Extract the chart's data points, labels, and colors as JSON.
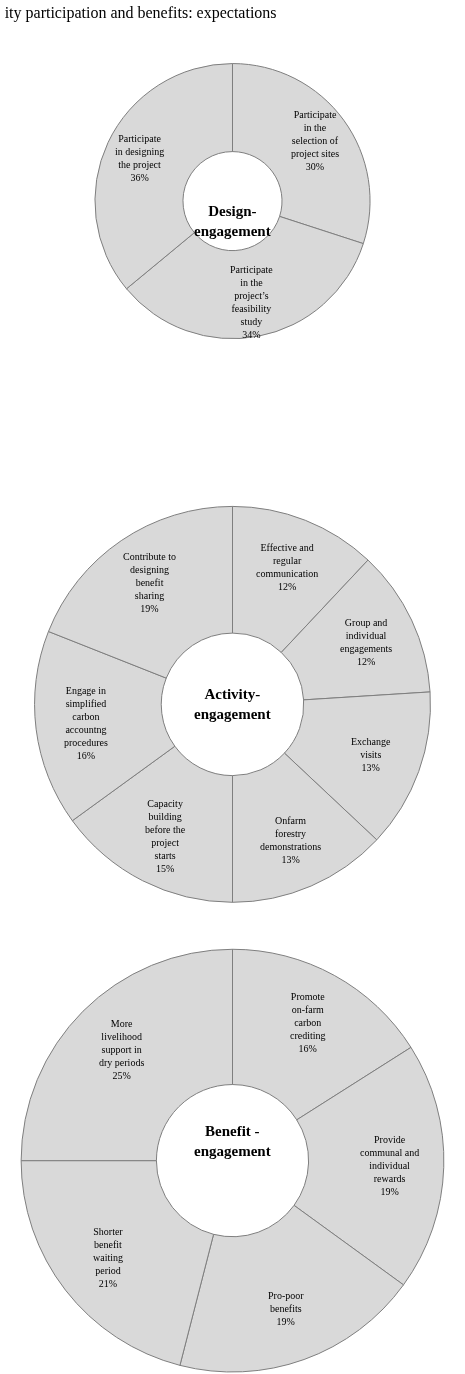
{
  "chart_data": [
    {
      "type": "donut",
      "title": "ity participation and benefits: expectations",
      "annotations": [
        "Design-\nengagement"
      ],
      "categories": [
        "Participate in the selection of project sites",
        "Participate in the project’s feasibility study",
        "Participate in designing the project"
      ],
      "values": [
        30,
        34,
        36
      ],
      "value_labels": [
        "30%",
        "34%",
        "36%"
      ],
      "colors": [
        "#d9d9d9",
        "#d9d9d9",
        "#d9d9d9"
      ]
    },
    {
      "type": "donut",
      "annotations": [
        "Activity-\nengagement"
      ],
      "categories": [
        "Effective and regular communication",
        "Group and individual engagements",
        "Exchange visits",
        "Onfarm forestry demonstrations",
        "Capacity building before the project starts",
        "Engage in simplified carbon accountng procedures",
        "Contribute to designing benefit sharing"
      ],
      "values": [
        12,
        12,
        13,
        13,
        15,
        16,
        19
      ],
      "value_labels": [
        "12%",
        "12%",
        "13%",
        "13%",
        "15%",
        "16%",
        "19%"
      ],
      "colors": [
        "#d9d9d9",
        "#d9d9d9",
        "#d9d9d9",
        "#d9d9d9",
        "#d9d9d9",
        "#d9d9d9",
        "#d9d9d9"
      ]
    },
    {
      "type": "donut",
      "annotations": [
        "Benefit -\nengagement"
      ],
      "categories": [
        "Promote on-farm carbon crediting",
        "Provide communal and individual rewards",
        "Pro-poor benefits",
        "Shorter benefit waiting period",
        "More livelihood support in dry periods"
      ],
      "values": [
        16,
        19,
        19,
        21,
        25
      ],
      "value_labels": [
        "16%",
        "19%",
        "19%",
        "21%",
        "25%"
      ],
      "colors": [
        "#d9d9d9",
        "#d9d9d9",
        "#d9d9d9",
        "#d9d9d9",
        "#d9d9d9"
      ]
    }
  ]
}
